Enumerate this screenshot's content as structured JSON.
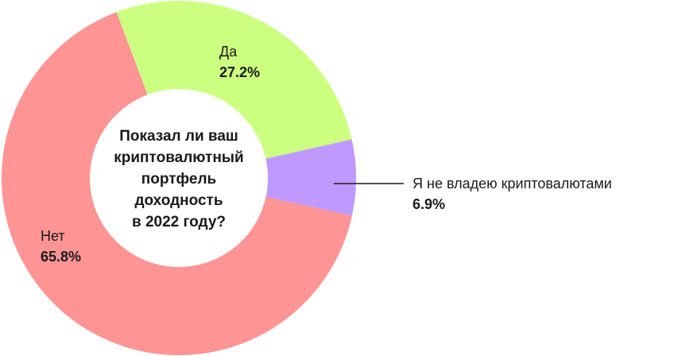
{
  "chart_data": {
    "type": "pie",
    "donut": true,
    "title": "Показал ли ваш криптовалютный портфель доходность в 2022 году?",
    "title_lines": [
      "Показал ли ваш",
      "криптовалютный",
      "портфель",
      "доходность",
      "в 2022 году?"
    ],
    "slices": [
      {
        "label": "Да",
        "value": 27.2,
        "value_label": "27.2%",
        "color": "#CCFF80"
      },
      {
        "label": "Я не владею криптовалютами",
        "value": 6.9,
        "value_label": "6.9%",
        "color": "#BF99FF"
      },
      {
        "label": "Нет",
        "value": 65.8,
        "value_label": "65.8%",
        "color": "#FF9494"
      }
    ]
  }
}
